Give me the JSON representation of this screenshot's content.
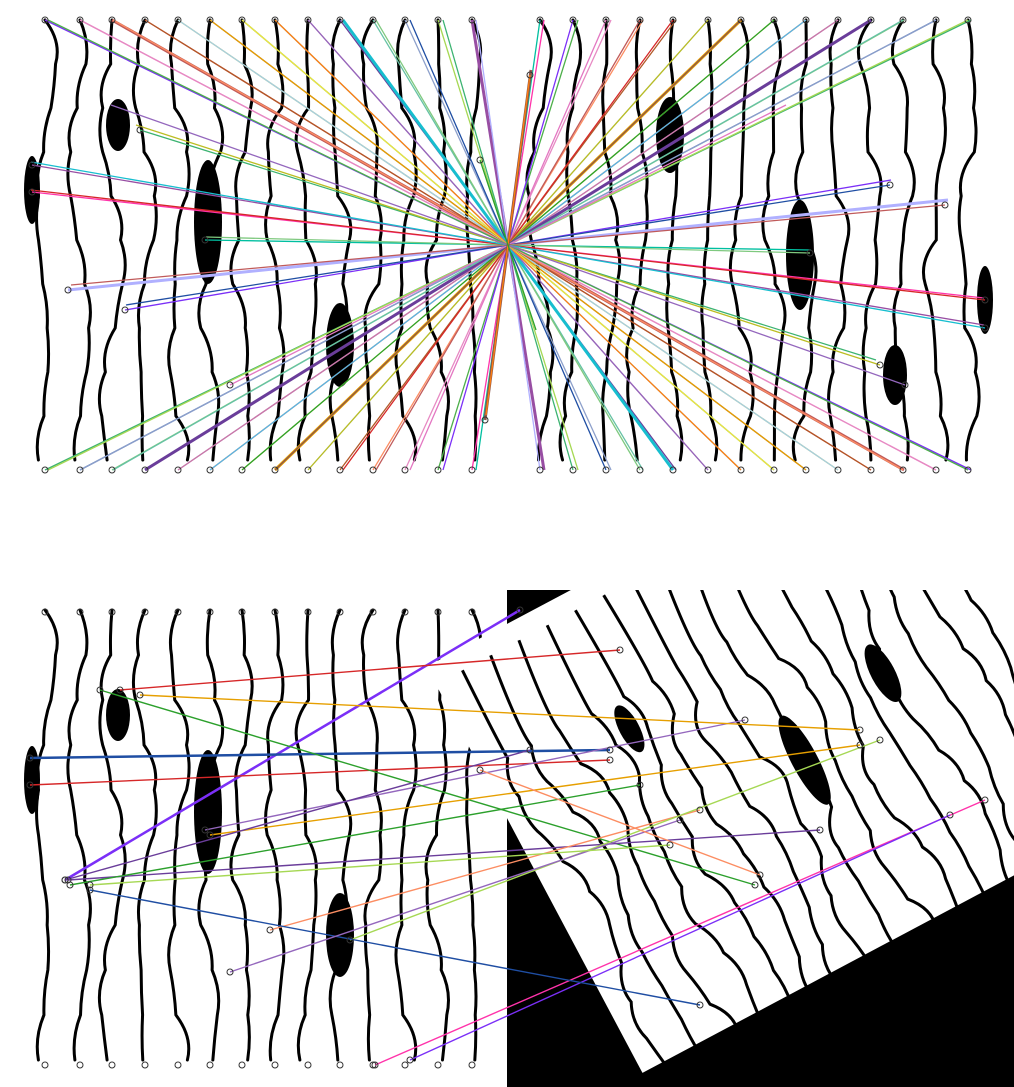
{
  "figure": {
    "panels": [
      {
        "id": "top",
        "content": "symmetric-pattern-self-match",
        "has_text": false
      },
      {
        "id": "bottom",
        "content": "pattern-vs-rotated-copy-match",
        "has_text": false
      }
    ],
    "colors": {
      "background": "#ffffff",
      "ink": "#000000",
      "keypoint_stroke": "#333333",
      "match_palette": [
        "#7b2ff7",
        "#3cb371",
        "#e377c2",
        "#1f4ea3",
        "#c05a5a",
        "#7fc97f",
        "#d62728",
        "#17becf",
        "#bcbd22",
        "#9467bd",
        "#8c564b",
        "#ff7f0e",
        "#2ca02c",
        "#f0e442",
        "#56b4e9",
        "#e69f00",
        "#cc79a7",
        "#a6cee3",
        "#6a3d9a",
        "#b15928",
        "#66c2a5",
        "#fc8d62",
        "#8da0cb",
        "#e78ac3",
        "#a6d854",
        "#4daf4a",
        "#984ea3",
        "#ff33aa",
        "#00bfa0",
        "#b0b0ff"
      ]
    },
    "icons": [
      "keypoint-circle-marker"
    ]
  }
}
